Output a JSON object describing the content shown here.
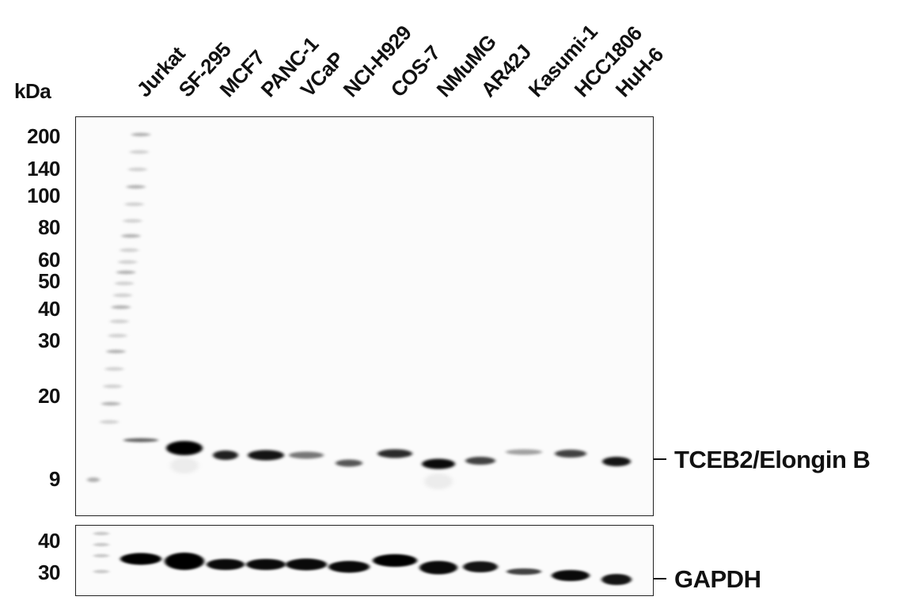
{
  "y_axis_unit": "kDa",
  "lanes": [
    "Jurkat",
    "SF-295",
    "MCF7",
    "PANC-1",
    "VCaP",
    "NCI-H929",
    "COS-7",
    "NMuMG",
    "AR42J",
    "Kasumi-1",
    "HCC1806",
    "HuH-6"
  ],
  "top_panel": {
    "mw_markers": [
      "200",
      "140",
      "100",
      "80",
      "60",
      "50",
      "40",
      "30",
      "20",
      "9"
    ],
    "band_label": "TCEB2/Elongin B",
    "band_intensity": [
      0.55,
      1.0,
      0.85,
      0.9,
      0.45,
      0.6,
      0.8,
      0.95,
      0.7,
      0.25,
      0.7,
      0.9
    ]
  },
  "bottom_panel": {
    "mw_markers": [
      "40",
      "30"
    ],
    "band_label": "GAPDH",
    "band_intensity": [
      1.0,
      1.0,
      0.95,
      0.95,
      0.95,
      0.95,
      1.0,
      0.95,
      0.9,
      0.7,
      0.95,
      0.9
    ]
  }
}
